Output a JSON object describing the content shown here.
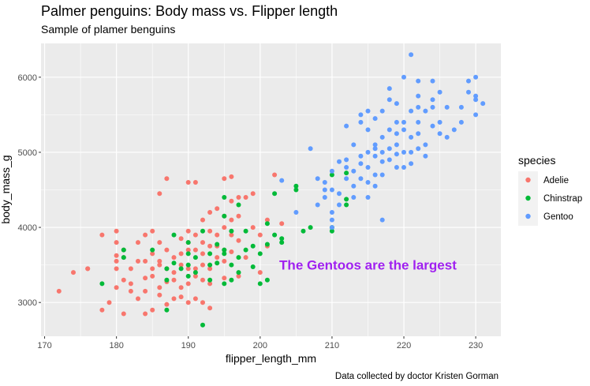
{
  "chart_data": {
    "type": "scatter",
    "title": "Palmer penguins: Body mass vs. Flipper length",
    "subtitle": "Sample of plamer benguins",
    "xlabel": "flipper_length_mm",
    "ylabel": "body_mass_g",
    "caption": "Data collected by doctor Kristen Gorman",
    "annotation": {
      "text": "The Gentoos are the largest",
      "x": 215,
      "y": 3500,
      "color": "#a020f0"
    },
    "xlim": [
      169.5,
      233.5
    ],
    "ylim": [
      2550,
      6450
    ],
    "x_ticks": [
      170,
      180,
      190,
      200,
      210,
      220,
      230
    ],
    "y_ticks": [
      3000,
      4000,
      5000,
      6000
    ],
    "grid": true,
    "panel_background": "#ebebeb",
    "legend": {
      "title": "species",
      "position": "right"
    },
    "series": [
      {
        "name": "Adelie",
        "color": "#f8766d",
        "points": [
          [
            172,
            3150
          ],
          [
            174,
            3400
          ],
          [
            176,
            3450
          ],
          [
            178,
            3900
          ],
          [
            178,
            2900
          ],
          [
            179,
            3000
          ],
          [
            180,
            3950
          ],
          [
            180,
            3800
          ],
          [
            180,
            3625
          ],
          [
            180,
            3550
          ],
          [
            180,
            3450
          ],
          [
            180,
            3200
          ],
          [
            181,
            2850
          ],
          [
            181,
            3300
          ],
          [
            181,
            3600
          ],
          [
            181,
            3700
          ],
          [
            182,
            3150
          ],
          [
            182,
            3450
          ],
          [
            182,
            3250
          ],
          [
            183,
            3550
          ],
          [
            183,
            3050
          ],
          [
            184,
            3550
          ],
          [
            184,
            3900
          ],
          [
            184,
            3325
          ],
          [
            184,
            3150
          ],
          [
            184,
            2850
          ],
          [
            185,
            3650
          ],
          [
            185,
            3950
          ],
          [
            185,
            3450
          ],
          [
            185,
            3350
          ],
          [
            185,
            2900
          ],
          [
            186,
            4450
          ],
          [
            186,
            3800
          ],
          [
            186,
            3500
          ],
          [
            186,
            3200
          ],
          [
            186,
            3100
          ],
          [
            187,
            3700
          ],
          [
            187,
            3450
          ],
          [
            187,
            2975
          ],
          [
            187,
            3275
          ],
          [
            187,
            4650
          ],
          [
            188,
            3600
          ],
          [
            188,
            3400
          ],
          [
            188,
            3050
          ],
          [
            188,
            3300
          ],
          [
            189,
            3650
          ],
          [
            189,
            3200
          ],
          [
            189,
            3500
          ],
          [
            189,
            3075
          ],
          [
            190,
            4600
          ],
          [
            190,
            3950
          ],
          [
            190,
            3700
          ],
          [
            190,
            3800
          ],
          [
            190,
            3250
          ],
          [
            190,
            3450
          ],
          [
            190,
            3000
          ],
          [
            191,
            4600
          ],
          [
            191,
            3900
          ],
          [
            191,
            3700
          ],
          [
            191,
            3450
          ],
          [
            191,
            3350
          ],
          [
            191,
            3050
          ],
          [
            192,
            4100
          ],
          [
            192,
            3800
          ],
          [
            192,
            3650
          ],
          [
            192,
            3500
          ],
          [
            192,
            3300
          ],
          [
            192,
            3000
          ],
          [
            193,
            4200
          ],
          [
            193,
            3950
          ],
          [
            193,
            3750
          ],
          [
            193,
            3450
          ],
          [
            193,
            3250
          ],
          [
            193,
            2925
          ],
          [
            194,
            4250
          ],
          [
            194,
            3900
          ],
          [
            194,
            3750
          ],
          [
            194,
            3525
          ],
          [
            195,
            4650
          ],
          [
            195,
            4150
          ],
          [
            195,
            4000
          ],
          [
            195,
            3700
          ],
          [
            195,
            3550
          ],
          [
            195,
            3325
          ],
          [
            196,
            4675
          ],
          [
            196,
            4350
          ],
          [
            196,
            4100
          ],
          [
            196,
            3900
          ],
          [
            196,
            3675
          ],
          [
            197,
            4400
          ],
          [
            197,
            4150
          ],
          [
            197,
            3825
          ],
          [
            197,
            3350
          ],
          [
            198,
            4400
          ],
          [
            198,
            3600
          ],
          [
            199,
            4450
          ],
          [
            199,
            4000
          ],
          [
            200,
            3900
          ],
          [
            200,
            3400
          ],
          [
            201,
            4100
          ],
          [
            201,
            3750
          ],
          [
            202,
            4700
          ],
          [
            203,
            4050
          ],
          [
            176,
            3450
          ],
          [
            183,
            3800
          ],
          [
            186,
            3550
          ],
          [
            189,
            3850
          ],
          [
            194,
            3600
          ]
        ]
      },
      {
        "name": "Chinstrap",
        "color": "#00ba38",
        "points": [
          [
            178,
            3250
          ],
          [
            181,
            3700
          ],
          [
            181,
            3600
          ],
          [
            185,
            3700
          ],
          [
            187,
            3300
          ],
          [
            187,
            2900
          ],
          [
            187,
            3450
          ],
          [
            188,
            3900
          ],
          [
            188,
            3525
          ],
          [
            189,
            3450
          ],
          [
            190,
            3800
          ],
          [
            190,
            3650
          ],
          [
            190,
            3350
          ],
          [
            190,
            3500
          ],
          [
            191,
            3600
          ],
          [
            191,
            3400
          ],
          [
            192,
            3950
          ],
          [
            192,
            2700
          ],
          [
            193,
            3300
          ],
          [
            193,
            3500
          ],
          [
            193,
            3650
          ],
          [
            194,
            3775
          ],
          [
            194,
            3525
          ],
          [
            195,
            4400
          ],
          [
            195,
            4150
          ],
          [
            195,
            3700
          ],
          [
            195,
            3650
          ],
          [
            195,
            3250
          ],
          [
            196,
            3500
          ],
          [
            196,
            3300
          ],
          [
            196,
            3950
          ],
          [
            197,
            3600
          ],
          [
            197,
            4300
          ],
          [
            197,
            3400
          ],
          [
            198,
            3700
          ],
          [
            198,
            3950
          ],
          [
            199,
            3750
          ],
          [
            199,
            3475
          ],
          [
            200,
            3650
          ],
          [
            200,
            3250
          ],
          [
            201,
            4050
          ],
          [
            201,
            3775
          ],
          [
            201,
            3300
          ],
          [
            202,
            4450
          ],
          [
            202,
            3900
          ],
          [
            203,
            3850
          ],
          [
            203,
            3800
          ],
          [
            205,
            4550
          ],
          [
            205,
            4500
          ],
          [
            206,
            3950
          ],
          [
            207,
            4000
          ],
          [
            210,
            4700
          ],
          [
            210,
            4000
          ],
          [
            210,
            3950
          ],
          [
            212,
            4725
          ],
          [
            212,
            4375
          ],
          [
            212,
            4300
          ]
        ]
      },
      {
        "name": "Gentoo",
        "color": "#619cff",
        "points": [
          [
            203,
            4625
          ],
          [
            205,
            4200
          ],
          [
            207,
            5050
          ],
          [
            208,
            4650
          ],
          [
            208,
            4300
          ],
          [
            209,
            4400
          ],
          [
            209,
            4600
          ],
          [
            210,
            4750
          ],
          [
            210,
            4500
          ],
          [
            210,
            4200
          ],
          [
            210,
            4100
          ],
          [
            210,
            4000
          ],
          [
            211,
            4450
          ],
          [
            211,
            4300
          ],
          [
            212,
            4900
          ],
          [
            212,
            4800
          ],
          [
            212,
            4650
          ],
          [
            213,
            4750
          ],
          [
            213,
            4550
          ],
          [
            213,
            4400
          ],
          [
            214,
            4950
          ],
          [
            214,
            4850
          ],
          [
            214,
            4650
          ],
          [
            214,
            5400
          ],
          [
            215,
            5000
          ],
          [
            215,
            5300
          ],
          [
            215,
            4800
          ],
          [
            215,
            4600
          ],
          [
            215,
            4400
          ],
          [
            215,
            5550
          ],
          [
            216,
            5100
          ],
          [
            216,
            4950
          ],
          [
            216,
            4700
          ],
          [
            216,
            4550
          ],
          [
            216,
            5050
          ],
          [
            217,
            5200
          ],
          [
            217,
            5000
          ],
          [
            217,
            4875
          ],
          [
            217,
            4700
          ],
          [
            217,
            4100
          ],
          [
            218,
            5300
          ],
          [
            218,
            5700
          ],
          [
            218,
            5050
          ],
          [
            218,
            4900
          ],
          [
            219,
            5250
          ],
          [
            219,
            5100
          ],
          [
            219,
            4975
          ],
          [
            219,
            4800
          ],
          [
            220,
            5400
          ],
          [
            220,
            5000
          ],
          [
            220,
            4800
          ],
          [
            220,
            5300
          ],
          [
            220,
            6000
          ],
          [
            221,
            5550
          ],
          [
            221,
            5200
          ],
          [
            221,
            5000
          ],
          [
            221,
            4850
          ],
          [
            221,
            6300
          ],
          [
            222,
            5950
          ],
          [
            222,
            5400
          ],
          [
            222,
            5250
          ],
          [
            222,
            5600
          ],
          [
            222,
            5750
          ],
          [
            223,
            5550
          ],
          [
            223,
            5100
          ],
          [
            223,
            4950
          ],
          [
            224,
            5350
          ],
          [
            224,
            5600
          ],
          [
            224,
            5700
          ],
          [
            225,
            5400
          ],
          [
            225,
            5250
          ],
          [
            225,
            5800
          ],
          [
            226,
            5200
          ],
          [
            228,
            5600
          ],
          [
            228,
            5400
          ],
          [
            229,
            5800
          ],
          [
            229,
            5950
          ],
          [
            230,
            5700
          ],
          [
            230,
            5500
          ],
          [
            230,
            6000
          ],
          [
            230,
            5750
          ],
          [
            231,
            5650
          ],
          [
            224,
            5950
          ],
          [
            226,
            5600
          ],
          [
            219,
            5650
          ],
          [
            219,
            5400
          ],
          [
            214,
            5500
          ],
          [
            213,
            5100
          ],
          [
            212,
            5350
          ],
          [
            211,
            4875
          ],
          [
            209,
            4500
          ],
          [
            217,
            5550
          ],
          [
            216,
            5450
          ],
          [
            218,
            5850
          ],
          [
            227,
            5300
          ],
          [
            222,
            5050
          ]
        ]
      }
    ]
  }
}
